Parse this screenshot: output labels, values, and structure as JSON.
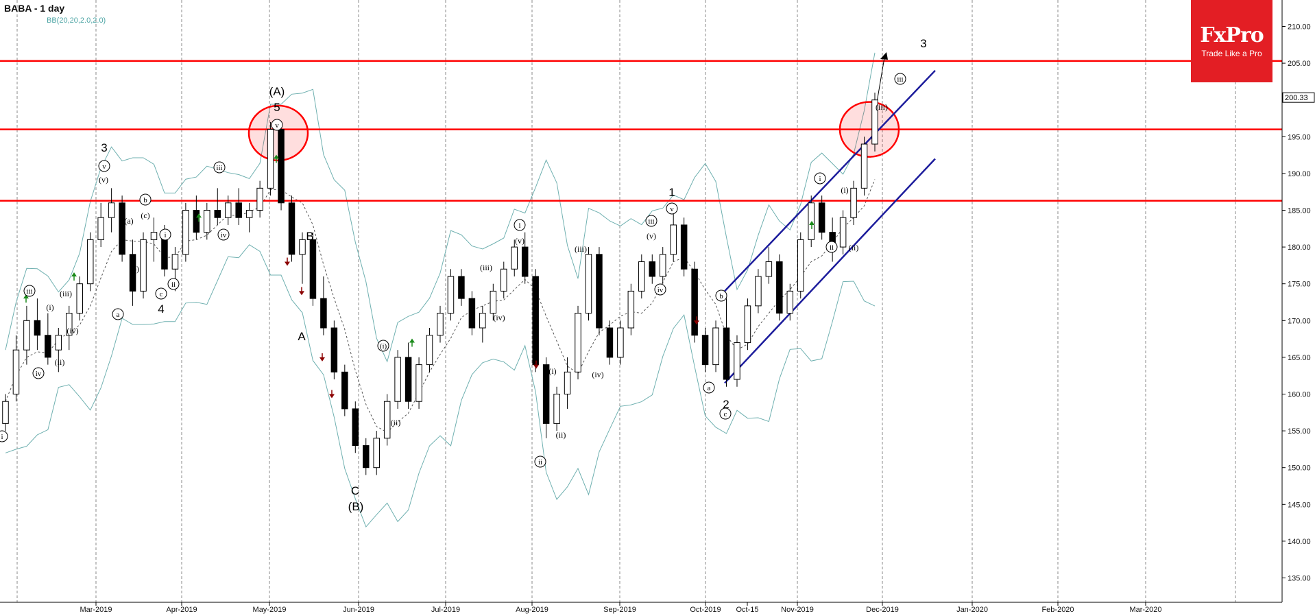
{
  "header": {
    "symbol": "BABA",
    "timeframe": "- 1 day",
    "indicator": "BB(20,20,2.0,2.0)"
  },
  "logo": {
    "name": "FxPro",
    "slogan": "Trade Like a Pro"
  },
  "colors": {
    "level_line": "#ff0000",
    "channel": "#1c1c9c",
    "bollinger": "#6fb0b0",
    "candle_up": "#ffffff",
    "candle_down": "#000000",
    "grid": "#8a8a8a",
    "logo_bg": "#e31e24"
  },
  "chart_data": {
    "type": "candlestick",
    "title": "BABA - 1 day",
    "y_axis": {
      "min": 130,
      "max": 213,
      "ticks": [
        "135.00",
        "140.00",
        "145.00",
        "150.00",
        "155.00",
        "160.00",
        "165.00",
        "170.00",
        "175.00",
        "180.00",
        "185.00",
        "190.00",
        "195.00",
        "200.00",
        "205.00",
        "210.00"
      ],
      "current_price": "200.33",
      "position": "right"
    },
    "x_axis": {
      "labels": [
        "Mar-2019",
        "Apr-2019",
        "May-2019",
        "Jun-2019",
        "Jul-2019",
        "Aug-2019",
        "Sep-2019",
        "Oct-2019",
        "Oct-15",
        "Nov-2019",
        "Dec-2019",
        "Jan-2020",
        "Feb-2020",
        "Mar-2020"
      ]
    },
    "grid": "vertical dashed at month starts",
    "horizontal_levels": [
      205.3,
      196.0,
      186.3
    ],
    "highlight_circles": [
      {
        "at": "May-2019",
        "price": 195.5
      },
      {
        "at": "Nov-2019",
        "price": 196.0
      }
    ],
    "channel": {
      "upper": [
        [
          "Oct-2019",
          174
        ],
        [
          "Dec-2019",
          204
        ]
      ],
      "lower": [
        [
          "Oct-2019",
          161.5
        ],
        [
          "Dec-2019",
          192
        ]
      ]
    },
    "projection_arrow": {
      "from": [
        "Nov-2019",
        197.5
      ],
      "to": [
        "Dec-2019",
        206.5
      ]
    },
    "candles": [
      {
        "o": 156,
        "h": 160,
        "l": 155,
        "c": 159
      },
      {
        "o": 160,
        "h": 168,
        "l": 159,
        "c": 166
      },
      {
        "o": 166,
        "h": 172,
        "l": 164,
        "c": 170
      },
      {
        "o": 170,
        "h": 173,
        "l": 166,
        "c": 168
      },
      {
        "o": 168,
        "h": 171,
        "l": 164,
        "c": 165
      },
      {
        "o": 166,
        "h": 169,
        "l": 163,
        "c": 168
      },
      {
        "o": 168,
        "h": 172,
        "l": 166,
        "c": 171
      },
      {
        "o": 171,
        "h": 176,
        "l": 170,
        "c": 175
      },
      {
        "o": 175,
        "h": 182,
        "l": 174,
        "c": 181
      },
      {
        "o": 181,
        "h": 186,
        "l": 180,
        "c": 184
      },
      {
        "o": 184,
        "h": 188,
        "l": 182,
        "c": 186
      },
      {
        "o": 186,
        "h": 187,
        "l": 178,
        "c": 179
      },
      {
        "o": 179,
        "h": 181,
        "l": 172,
        "c": 174
      },
      {
        "o": 174,
        "h": 182,
        "l": 173,
        "c": 181
      },
      {
        "o": 181,
        "h": 184,
        "l": 178,
        "c": 182
      },
      {
        "o": 182,
        "h": 183,
        "l": 176,
        "c": 177
      },
      {
        "o": 177,
        "h": 180,
        "l": 174,
        "c": 179
      },
      {
        "o": 179,
        "h": 186,
        "l": 178,
        "c": 185
      },
      {
        "o": 185,
        "h": 187,
        "l": 181,
        "c": 182
      },
      {
        "o": 182,
        "h": 186,
        "l": 181,
        "c": 185
      },
      {
        "o": 185,
        "h": 188,
        "l": 183,
        "c": 184
      },
      {
        "o": 184,
        "h": 187,
        "l": 183,
        "c": 186
      },
      {
        "o": 186,
        "h": 188,
        "l": 183,
        "c": 184
      },
      {
        "o": 184,
        "h": 186,
        "l": 182,
        "c": 185
      },
      {
        "o": 185,
        "h": 189,
        "l": 184,
        "c": 188
      },
      {
        "o": 188,
        "h": 197,
        "l": 187,
        "c": 196
      },
      {
        "o": 196,
        "h": 197,
        "l": 185,
        "c": 186
      },
      {
        "o": 186,
        "h": 187,
        "l": 178,
        "c": 179
      },
      {
        "o": 179,
        "h": 182,
        "l": 175,
        "c": 181
      },
      {
        "o": 181,
        "h": 182,
        "l": 172,
        "c": 173
      },
      {
        "o": 173,
        "h": 176,
        "l": 168,
        "c": 169
      },
      {
        "o": 169,
        "h": 170,
        "l": 162,
        "c": 163
      },
      {
        "o": 163,
        "h": 164,
        "l": 157,
        "c": 158
      },
      {
        "o": 158,
        "h": 159,
        "l": 152,
        "c": 153
      },
      {
        "o": 153,
        "h": 154,
        "l": 149,
        "c": 150
      },
      {
        "o": 150,
        "h": 155,
        "l": 149,
        "c": 154
      },
      {
        "o": 154,
        "h": 160,
        "l": 153,
        "c": 159
      },
      {
        "o": 159,
        "h": 166,
        "l": 158,
        "c": 165
      },
      {
        "o": 165,
        "h": 167,
        "l": 158,
        "c": 159
      },
      {
        "o": 159,
        "h": 165,
        "l": 158,
        "c": 164
      },
      {
        "o": 164,
        "h": 169,
        "l": 163,
        "c": 168
      },
      {
        "o": 168,
        "h": 172,
        "l": 167,
        "c": 171
      },
      {
        "o": 171,
        "h": 177,
        "l": 170,
        "c": 176
      },
      {
        "o": 176,
        "h": 177,
        "l": 172,
        "c": 173
      },
      {
        "o": 173,
        "h": 174,
        "l": 168,
        "c": 169
      },
      {
        "o": 169,
        "h": 172,
        "l": 167,
        "c": 171
      },
      {
        "o": 171,
        "h": 175,
        "l": 170,
        "c": 174
      },
      {
        "o": 174,
        "h": 178,
        "l": 173,
        "c": 177
      },
      {
        "o": 177,
        "h": 181,
        "l": 176,
        "c": 180
      },
      {
        "o": 180,
        "h": 182,
        "l": 175,
        "c": 176
      },
      {
        "o": 176,
        "h": 177,
        "l": 163,
        "c": 164
      },
      {
        "o": 164,
        "h": 165,
        "l": 154,
        "c": 156
      },
      {
        "o": 156,
        "h": 161,
        "l": 155,
        "c": 160
      },
      {
        "o": 160,
        "h": 165,
        "l": 158,
        "c": 163
      },
      {
        "o": 163,
        "h": 172,
        "l": 162,
        "c": 171
      },
      {
        "o": 171,
        "h": 180,
        "l": 170,
        "c": 179
      },
      {
        "o": 179,
        "h": 180,
        "l": 168,
        "c": 169
      },
      {
        "o": 169,
        "h": 170,
        "l": 164,
        "c": 165
      },
      {
        "o": 165,
        "h": 170,
        "l": 164,
        "c": 169
      },
      {
        "o": 169,
        "h": 175,
        "l": 168,
        "c": 174
      },
      {
        "o": 174,
        "h": 179,
        "l": 173,
        "c": 178
      },
      {
        "o": 178,
        "h": 179,
        "l": 175,
        "c": 176
      },
      {
        "o": 176,
        "h": 180,
        "l": 175,
        "c": 179
      },
      {
        "o": 179,
        "h": 185,
        "l": 178,
        "c": 183
      },
      {
        "o": 183,
        "h": 184,
        "l": 176,
        "c": 177
      },
      {
        "o": 177,
        "h": 178,
        "l": 167,
        "c": 168
      },
      {
        "o": 168,
        "h": 169,
        "l": 163,
        "c": 164
      },
      {
        "o": 164,
        "h": 170,
        "l": 163,
        "c": 169
      },
      {
        "o": 169,
        "h": 173,
        "l": 161,
        "c": 162
      },
      {
        "o": 162,
        "h": 168,
        "l": 161,
        "c": 167
      },
      {
        "o": 167,
        "h": 173,
        "l": 166,
        "c": 172
      },
      {
        "o": 172,
        "h": 177,
        "l": 171,
        "c": 176
      },
      {
        "o": 176,
        "h": 180,
        "l": 175,
        "c": 178
      },
      {
        "o": 178,
        "h": 179,
        "l": 170,
        "c": 171
      },
      {
        "o": 171,
        "h": 175,
        "l": 170,
        "c": 174
      },
      {
        "o": 174,
        "h": 182,
        "l": 173,
        "c": 181
      },
      {
        "o": 181,
        "h": 187,
        "l": 180,
        "c": 186
      },
      {
        "o": 186,
        "h": 187,
        "l": 181,
        "c": 182
      },
      {
        "o": 182,
        "h": 184,
        "l": 178,
        "c": 180
      },
      {
        "o": 180,
        "h": 185,
        "l": 179,
        "c": 184
      },
      {
        "o": 184,
        "h": 189,
        "l": 183,
        "c": 188
      },
      {
        "o": 188,
        "h": 195,
        "l": 187,
        "c": 194
      },
      {
        "o": 194,
        "h": 201,
        "l": 193,
        "c": 200
      }
    ]
  },
  "annotations": {
    "a_A": "(A)",
    "a_5": "5",
    "a_v_top": "v",
    "a_3": "3",
    "a_v3": "v",
    "a_v3b": "(v)",
    "a_iii1": "iii",
    "a_iv1": "iv",
    "a_i1": "(i)",
    "a_iii1b": "(iii)",
    "a_ii1": "(ii)",
    "a_iv1b": "(iv)",
    "a_i_left": "i",
    "a_a1": "(a)",
    "a_b1": "(b)",
    "a_c1": "(c)",
    "a_b1c": "b",
    "a_a1c": "a",
    "a_c1c": "c",
    "a_i2": "i",
    "a_ii2": "ii",
    "a_4": "4",
    "a_iii2": "iii",
    "a_iv2": "iv",
    "a_B": "B",
    "a_Aw": "A",
    "a_C": "C",
    "a_Bw": "(B)",
    "a_i3": "(i)",
    "a_ii3": "(ii)",
    "a_i4": "i",
    "a_v4": "(v)",
    "a_iii4": "(iii)",
    "a_iv4": "(iv)",
    "a_i5": "(i)",
    "a_ii5": "ii",
    "a_ii5b": "(ii)",
    "a_iii5": "(iii)",
    "a_iv5": "(iv)",
    "a_1": "1",
    "a_v6": "v",
    "a_iii6": "iii",
    "a_v6b": "(v)",
    "a_iv6": "iv",
    "a_b7": "b",
    "a_a7": "a",
    "a_c7": "c",
    "a_2": "2",
    "a_i8": "i",
    "a_ii8": "ii",
    "a_i8b": "(i)",
    "a_ii8b": "(ii)",
    "a_iii8": "(iii)",
    "a_iii8c": "iii",
    "a_3b": "3"
  }
}
